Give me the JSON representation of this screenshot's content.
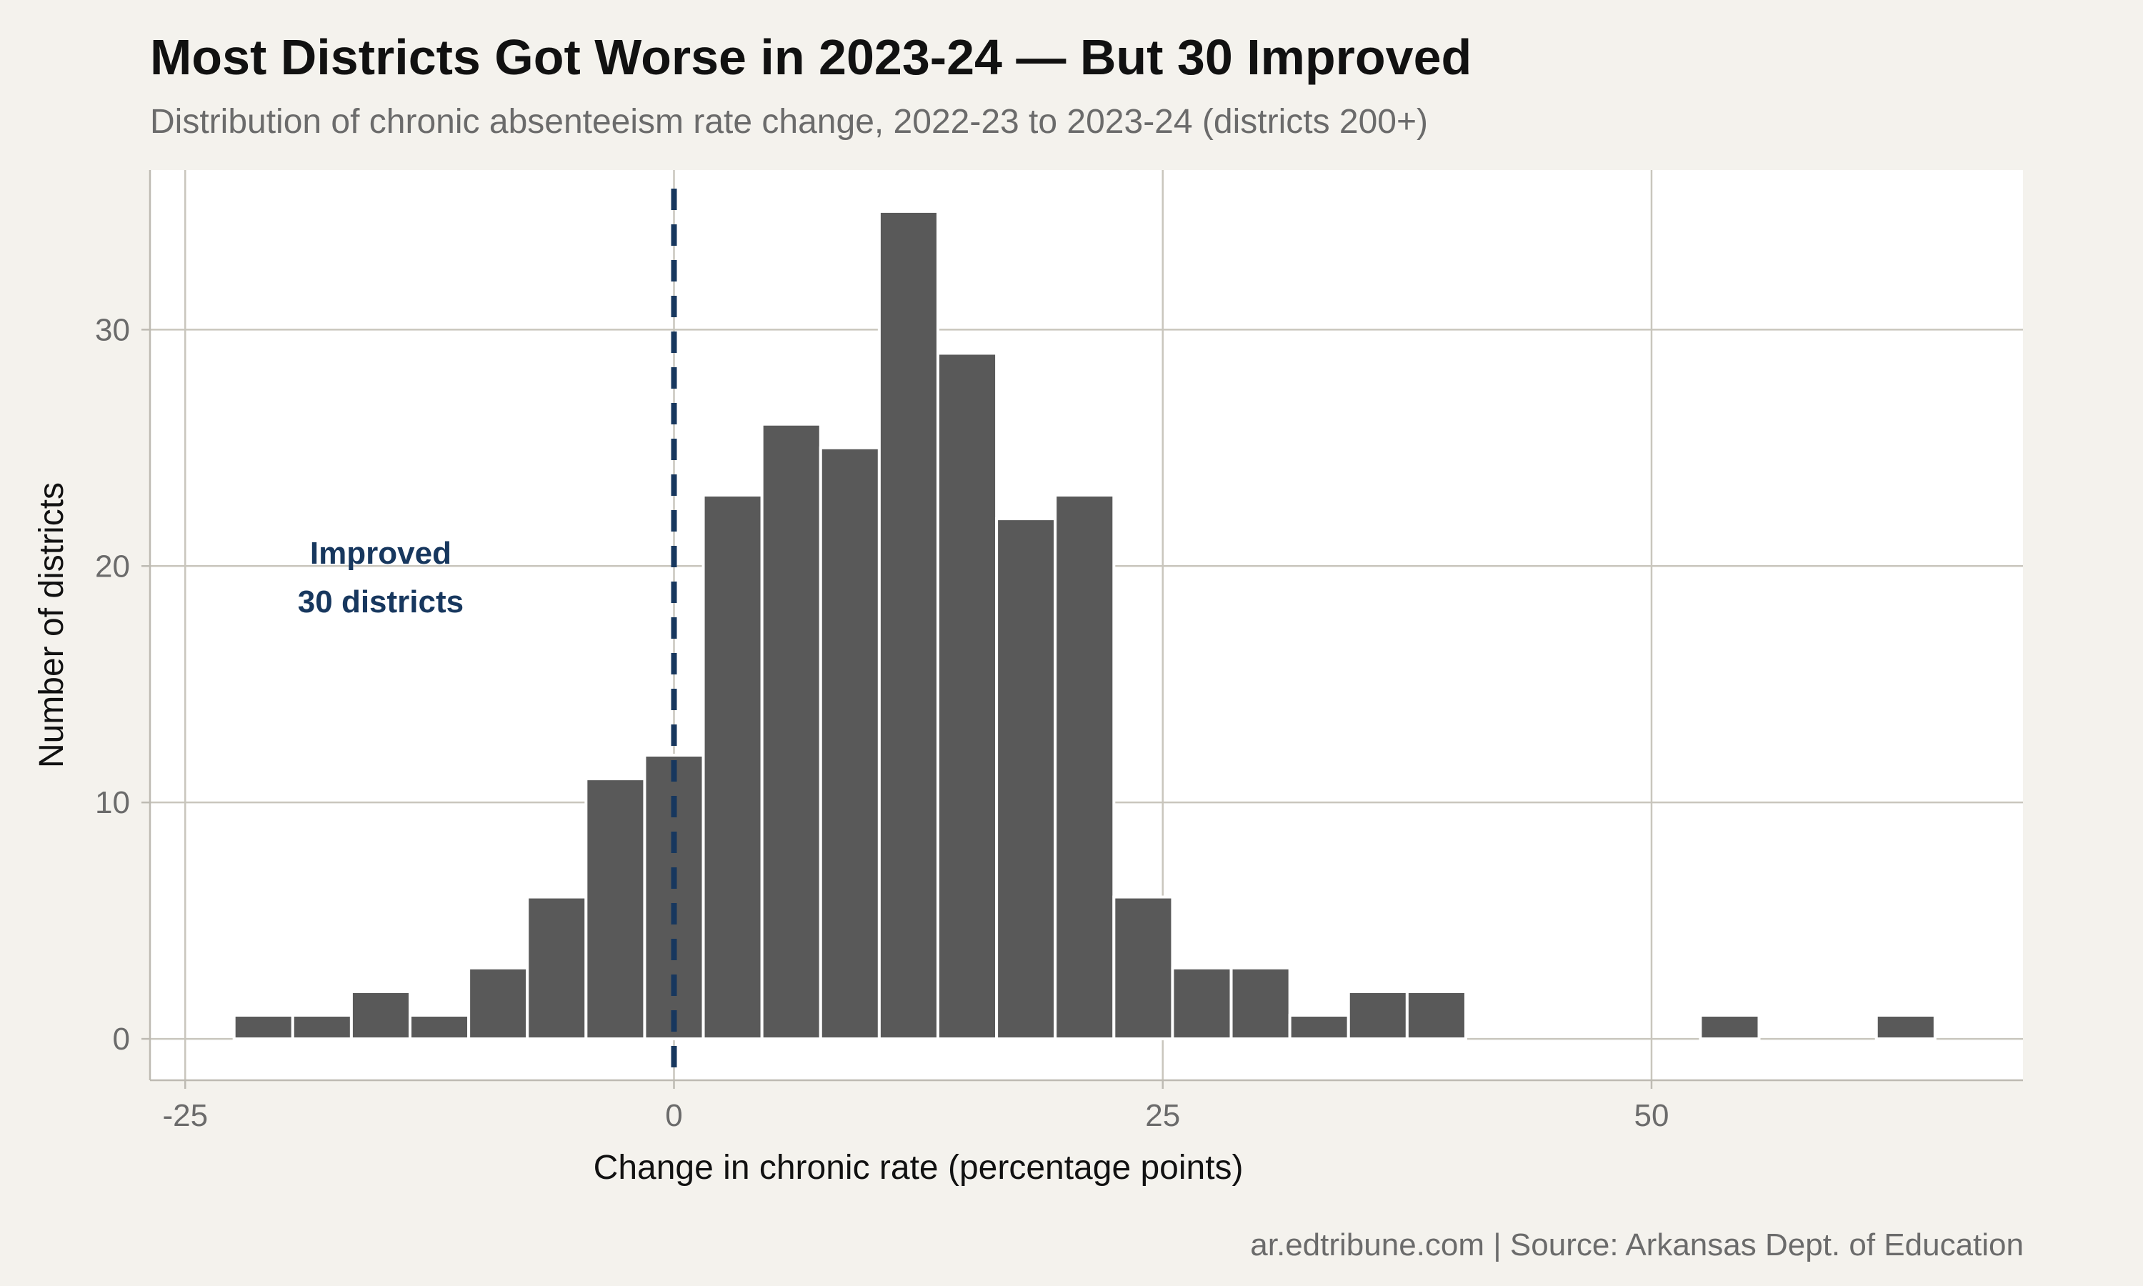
{
  "chart_data": {
    "type": "bar",
    "title": "Most Districts Got Worse in 2023-24 — But 30 Improved",
    "subtitle": "Distribution of chronic absenteeism rate change, 2022-23 to 2023-24 (districts 200+)",
    "xlabel": "Change in chronic rate (percentage points)",
    "ylabel": "Number of districts",
    "caption": "ar.edtribune.com | Source: Arkansas Dept. of Education",
    "xlim": [
      -26.8,
      69.0
    ],
    "ylim": [
      -1.75,
      36.75
    ],
    "x_ticks": [
      -25,
      0,
      25,
      50
    ],
    "x_tick_labels": [
      "-25",
      "0",
      "25",
      "50"
    ],
    "y_ticks": [
      0,
      10,
      20,
      30
    ],
    "y_tick_labels": [
      "0",
      "10",
      "20",
      "30"
    ],
    "grid": true,
    "bin_width": 3,
    "bins": [
      {
        "x0": -22.5,
        "count": 1
      },
      {
        "x0": -19.5,
        "count": 1
      },
      {
        "x0": -16.5,
        "count": 2
      },
      {
        "x0": -13.5,
        "count": 1
      },
      {
        "x0": -10.5,
        "count": 3
      },
      {
        "x0": -7.5,
        "count": 6
      },
      {
        "x0": -4.5,
        "count": 11
      },
      {
        "x0": -1.5,
        "count": 12
      },
      {
        "x0": 1.5,
        "count": 23
      },
      {
        "x0": 4.5,
        "count": 26
      },
      {
        "x0": 7.5,
        "count": 25
      },
      {
        "x0": 10.5,
        "count": 35
      },
      {
        "x0": 13.5,
        "count": 29
      },
      {
        "x0": 16.5,
        "count": 22
      },
      {
        "x0": 19.5,
        "count": 23
      },
      {
        "x0": 22.5,
        "count": 6
      },
      {
        "x0": 25.5,
        "count": 3
      },
      {
        "x0": 28.5,
        "count": 3
      },
      {
        "x0": 31.5,
        "count": 1
      },
      {
        "x0": 34.5,
        "count": 2
      },
      {
        "x0": 37.5,
        "count": 2
      },
      {
        "x0": 40.5,
        "count": 0
      },
      {
        "x0": 43.5,
        "count": 0
      },
      {
        "x0": 46.5,
        "count": 0
      },
      {
        "x0": 49.5,
        "count": 0
      },
      {
        "x0": 52.5,
        "count": 1
      },
      {
        "x0": 55.5,
        "count": 0
      },
      {
        "x0": 58.5,
        "count": 0
      },
      {
        "x0": 61.5,
        "count": 1
      }
    ],
    "reference_line": {
      "x": 0,
      "style": "dashed",
      "color": "#17375e"
    },
    "annotation": {
      "lines": [
        "Improved",
        "30 districts"
      ],
      "x": -15,
      "y": 19.8,
      "color": "#17375e"
    },
    "colors": {
      "bar": "#595959",
      "panel": "#ffffff",
      "background": "#f4f2ed",
      "grid": "#c9c6bd"
    }
  }
}
